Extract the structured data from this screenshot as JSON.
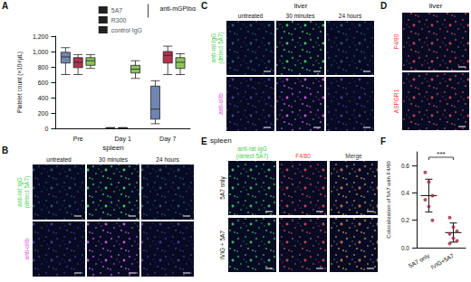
{
  "chart_data": [
    {
      "panel": "A",
      "type": "boxplot",
      "y_label": "Platelet count (×10³/µL)",
      "categories": [
        "Pre",
        "Day 1",
        "Day 7"
      ],
      "ylim": [
        0,
        1200
      ],
      "yticks": [
        0,
        200,
        400,
        600,
        800,
        1000,
        1200
      ],
      "grid": false,
      "legend": "top-right",
      "legend_title": "anti-mGPIbα",
      "series": [
        {
          "name": "5A7",
          "color": "#7085b0",
          "values": [
            [
              700,
              850,
              930,
              990,
              1050
            ],
            [
              0,
              0,
              3,
              6,
              10
            ],
            [
              60,
              120,
              250,
              550,
              620
            ]
          ]
        },
        {
          "name": "R300",
          "color": "#b03350",
          "values": [
            [
              700,
              790,
              860,
              920,
              960
            ],
            [
              0,
              0,
              3,
              6,
              10
            ],
            [
              700,
              850,
              950,
              1000,
              1070
            ]
          ]
        },
        {
          "name": "control IgG",
          "color": "#8cc35a",
          "values": [
            [
              780,
              820,
              880,
              920,
              960
            ],
            [
              650,
              720,
              770,
              820,
              880
            ],
            [
              700,
              780,
              860,
              920,
              970
            ]
          ]
        }
      ]
    },
    {
      "panel": "F",
      "type": "scatter",
      "y_label": "Colocalization of 5A7 with F4/80",
      "categories": [
        "5A7 only",
        "IVIG+5A7"
      ],
      "ylim": [
        0,
        0.7
      ],
      "yticks": [
        {
          "value": 0,
          "label": "0.0"
        },
        {
          "value": 0.2,
          "label": "0.2"
        },
        {
          "value": 0.4,
          "label": "0.4"
        },
        {
          "value": 0.6,
          "label": "0.6"
        }
      ],
      "grid": false,
      "color": "#a0243c",
      "values": [
        [
          0.55,
          0.48,
          0.38,
          0.35,
          0.3,
          0.2
        ],
        [
          0.22,
          0.15,
          0.12,
          0.1,
          0.07,
          0.05,
          0.03
        ]
      ],
      "mean": [
        0.38,
        0.11
      ],
      "sd": [
        0.12,
        0.07
      ],
      "annotation": "***"
    }
  ],
  "image_panels": [
    {
      "panel": "B",
      "title": "spleen",
      "columns": [
        {
          "label": [
            "untreated"
          ]
        },
        {
          "label": [
            "30 minutes"
          ]
        },
        {
          "label": [
            "24 hours"
          ]
        }
      ],
      "rows": [
        {
          "label": [
            "anti-rat IgG",
            "(detect 5A7)"
          ],
          "color": "#3fd14a"
        },
        {
          "label": [
            "anti-αIIb"
          ],
          "color": "#d94fd9"
        }
      ]
    },
    {
      "panel": "C",
      "title": "liver",
      "columns": [
        {
          "label": [
            "untreated"
          ]
        },
        {
          "label": [
            "30 minutes"
          ]
        },
        {
          "label": [
            "24 hours"
          ]
        }
      ],
      "rows": [
        {
          "label": [
            "anti-rat IgG",
            "(detect 5A7)"
          ],
          "color": "#3fd14a"
        },
        {
          "label": [
            "anti-αIIb"
          ],
          "color": "#d94fd9"
        }
      ]
    },
    {
      "panel": "D",
      "title": "liver",
      "columns": [],
      "rows": [
        {
          "label": [
            "F4/80"
          ],
          "color": "#e8443a"
        },
        {
          "label": [
            "ASPGR1"
          ],
          "color": "#e8443a"
        }
      ]
    },
    {
      "panel": "E",
      "title": "spleen",
      "columns": [
        {
          "label": [
            "anti-rat IgG",
            "(detect 5A7)"
          ],
          "color": "#3fd14a"
        },
        {
          "label": [
            "F4/80"
          ],
          "color": "#e8443a"
        },
        {
          "label": [
            "Merge"
          ],
          "color": "#333333"
        }
      ],
      "rows": [
        {
          "label": [
            "5A7 only"
          ]
        },
        {
          "label": [
            "IVIG + 5A7"
          ]
        }
      ]
    }
  ]
}
